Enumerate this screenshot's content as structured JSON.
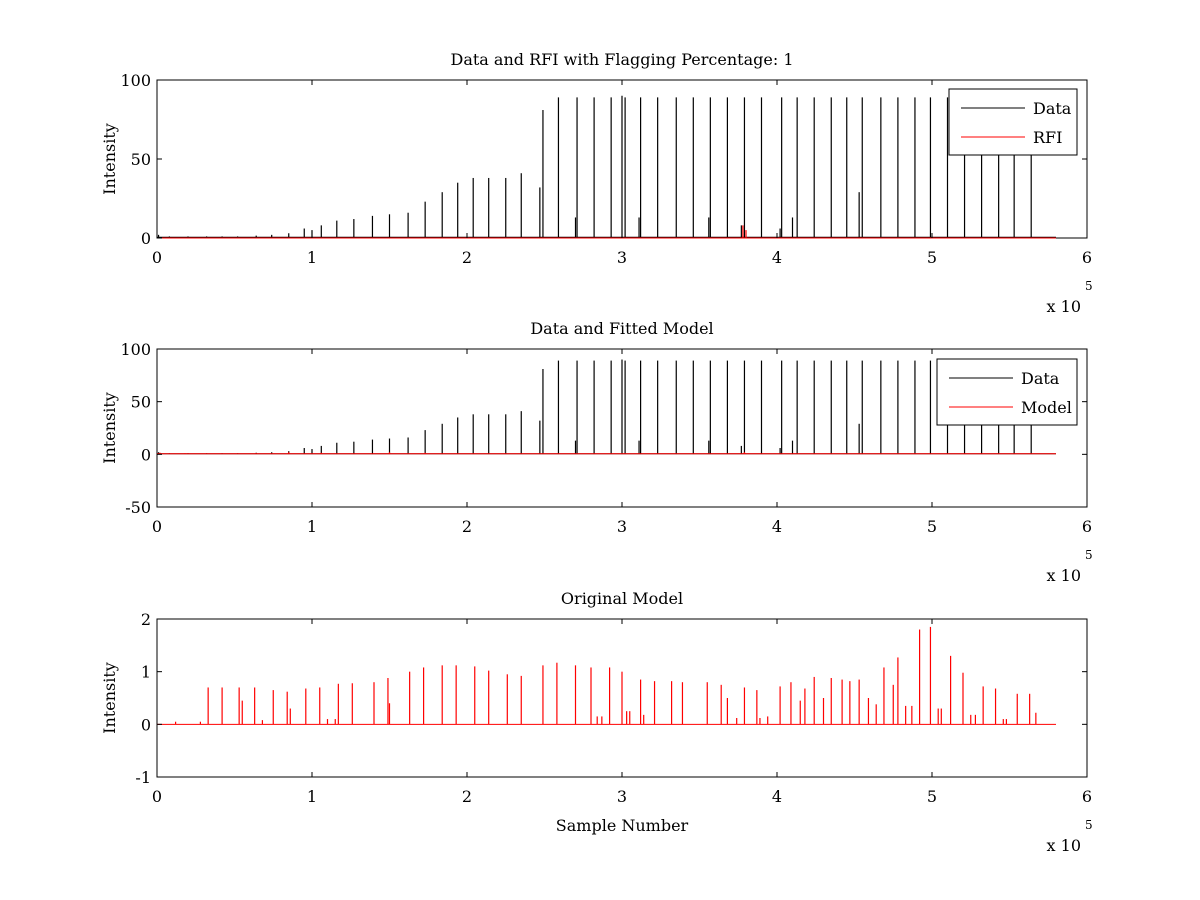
{
  "chart_data": [
    {
      "type": "line",
      "title": "Data and RFI with Flagging Percentage: 1",
      "xlabel": "",
      "ylabel": "Intensity",
      "xlim": [
        0,
        600000
      ],
      "ylim": [
        0,
        100
      ],
      "xticks": [
        0,
        100000,
        200000,
        300000,
        400000,
        500000,
        600000
      ],
      "xtick_labels": [
        "0",
        "1",
        "2",
        "3",
        "4",
        "5",
        "6"
      ],
      "yticks": [
        0,
        50,
        100
      ],
      "ytick_labels": [
        "0",
        "50",
        "100"
      ],
      "x_multiplier": {
        "base": "x 10",
        "exponent": "5"
      },
      "legend": {
        "position": "top-right",
        "entries": [
          "Data",
          "RFI"
        ]
      },
      "series": [
        {
          "name": "Data",
          "color": "#000000",
          "baseline": 0.5,
          "spikes": [
            [
              1000,
              2
            ],
            [
              8000,
              1
            ],
            [
              20000,
              1
            ],
            [
              32000,
              1
            ],
            [
              42000,
              1
            ],
            [
              52000,
              1
            ],
            [
              64000,
              1.5
            ],
            [
              74000,
              2
            ],
            [
              85000,
              3
            ],
            [
              95000,
              6
            ],
            [
              100000,
              5
            ],
            [
              106000,
              8
            ],
            [
              116000,
              11
            ],
            [
              127000,
              12
            ],
            [
              139000,
              14
            ],
            [
              150000,
              15
            ],
            [
              162000,
              16
            ],
            [
              173000,
              23
            ],
            [
              184000,
              29
            ],
            [
              194000,
              35
            ],
            [
              204000,
              38
            ],
            [
              214000,
              38
            ],
            [
              225000,
              38
            ],
            [
              235000,
              41
            ],
            [
              247000,
              32
            ],
            [
              249000,
              81
            ],
            [
              259000,
              89
            ],
            [
              270000,
              13
            ],
            [
              271000,
              89
            ],
            [
              282000,
              89
            ],
            [
              293000,
              89
            ],
            [
              300000,
              90
            ],
            [
              302000,
              89
            ],
            [
              311000,
              13
            ],
            [
              312000,
              89
            ],
            [
              323000,
              89
            ],
            [
              335000,
              89
            ],
            [
              346000,
              89
            ],
            [
              356000,
              13
            ],
            [
              357000,
              89
            ],
            [
              368000,
              89
            ],
            [
              377000,
              8
            ],
            [
              379000,
              89
            ],
            [
              390000,
              89
            ],
            [
              402000,
              6
            ],
            [
              403000,
              89
            ],
            [
              410000,
              13
            ],
            [
              413000,
              89
            ],
            [
              424000,
              89
            ],
            [
              435000,
              89
            ],
            [
              445000,
              89
            ],
            [
              453000,
              29
            ],
            [
              455000,
              89
            ],
            [
              467000,
              89
            ],
            [
              478000,
              89
            ],
            [
              489000,
              89
            ],
            [
              499000,
              89
            ],
            [
              510000,
              89
            ],
            [
              521000,
              89
            ],
            [
              532000,
              89
            ],
            [
              543000,
              89
            ],
            [
              553000,
              89
            ],
            [
              564000,
              89
            ]
          ],
          "x_end": 580000
        },
        {
          "name": "RFI",
          "color": "#ff0000",
          "baseline": 0,
          "spikes": [
            [
              378000,
              8
            ],
            [
              380000,
              5
            ]
          ],
          "x_end": 580000
        }
      ]
    },
    {
      "type": "line",
      "title": "Data and Fitted Model",
      "xlabel": "",
      "ylabel": "Intensity",
      "xlim": [
        0,
        600000
      ],
      "ylim": [
        -50,
        100
      ],
      "xticks": [
        0,
        100000,
        200000,
        300000,
        400000,
        500000,
        600000
      ],
      "xtick_labels": [
        "0",
        "1",
        "2",
        "3",
        "4",
        "5",
        "6"
      ],
      "yticks": [
        -50,
        0,
        50,
        100
      ],
      "ytick_labels": [
        "-50",
        "0",
        "50",
        "100"
      ],
      "x_multiplier": {
        "base": "x 10",
        "exponent": "5"
      },
      "legend": {
        "position": "top-right",
        "entries": [
          "Data",
          "Model"
        ]
      },
      "series": [
        {
          "name": "Data",
          "color": "#000000",
          "baseline": 0.5,
          "spikes": [
            [
              1000,
              2
            ],
            [
              8000,
              1
            ],
            [
              20000,
              1
            ],
            [
              32000,
              1
            ],
            [
              42000,
              1
            ],
            [
              52000,
              1
            ],
            [
              64000,
              1.5
            ],
            [
              74000,
              2
            ],
            [
              85000,
              3
            ],
            [
              95000,
              6
            ],
            [
              100000,
              5
            ],
            [
              106000,
              8
            ],
            [
              116000,
              11
            ],
            [
              127000,
              12
            ],
            [
              139000,
              14
            ],
            [
              150000,
              15
            ],
            [
              162000,
              16
            ],
            [
              173000,
              23
            ],
            [
              184000,
              29
            ],
            [
              194000,
              35
            ],
            [
              204000,
              38
            ],
            [
              214000,
              38
            ],
            [
              225000,
              38
            ],
            [
              235000,
              41
            ],
            [
              247000,
              32
            ],
            [
              249000,
              81
            ],
            [
              259000,
              89
            ],
            [
              270000,
              13
            ],
            [
              271000,
              89
            ],
            [
              282000,
              89
            ],
            [
              293000,
              89
            ],
            [
              300000,
              90
            ],
            [
              302000,
              89
            ],
            [
              311000,
              13
            ],
            [
              312000,
              89
            ],
            [
              323000,
              89
            ],
            [
              335000,
              89
            ],
            [
              346000,
              89
            ],
            [
              356000,
              13
            ],
            [
              357000,
              89
            ],
            [
              368000,
              89
            ],
            [
              377000,
              8
            ],
            [
              379000,
              89
            ],
            [
              390000,
              89
            ],
            [
              402000,
              6
            ],
            [
              403000,
              89
            ],
            [
              410000,
              13
            ],
            [
              413000,
              89
            ],
            [
              424000,
              89
            ],
            [
              435000,
              89
            ],
            [
              445000,
              89
            ],
            [
              453000,
              29
            ],
            [
              455000,
              89
            ],
            [
              467000,
              89
            ],
            [
              478000,
              89
            ],
            [
              489000,
              89
            ],
            [
              499000,
              89
            ],
            [
              510000,
              89
            ],
            [
              521000,
              89
            ],
            [
              532000,
              89
            ],
            [
              543000,
              89
            ],
            [
              553000,
              89
            ],
            [
              564000,
              89
            ]
          ],
          "x_end": 580000
        },
        {
          "name": "Model",
          "color": "#ff0000",
          "baseline": 0.5,
          "spikes": [
            [
              2000,
              1.5
            ],
            [
              18000,
              1
            ],
            [
              64000,
              1
            ],
            [
              85000,
              2
            ],
            [
              106000,
              1.5
            ],
            [
              150000,
              2
            ],
            [
              173000,
              1.5
            ],
            [
              379000,
              2
            ]
          ],
          "x_end": 580000
        }
      ]
    },
    {
      "type": "line",
      "title": "Original Model",
      "xlabel": "Sample Number",
      "ylabel": "Intensity",
      "xlim": [
        0,
        600000
      ],
      "ylim": [
        -1,
        2
      ],
      "xticks": [
        0,
        100000,
        200000,
        300000,
        400000,
        500000,
        600000
      ],
      "xtick_labels": [
        "0",
        "1",
        "2",
        "3",
        "4",
        "5",
        "6"
      ],
      "yticks": [
        -1,
        0,
        1,
        2
      ],
      "ytick_labels": [
        "-1",
        "0",
        "1",
        "2"
      ],
      "x_multiplier": {
        "base": "x 10",
        "exponent": "5"
      },
      "series": [
        {
          "color": "#ff0000",
          "baseline": 0,
          "spikes": [
            [
              12000,
              0.05
            ],
            [
              28000,
              0.05
            ],
            [
              33000,
              0.7
            ],
            [
              42000,
              0.7
            ],
            [
              53000,
              0.7
            ],
            [
              55000,
              0.45
            ],
            [
              63000,
              0.7
            ],
            [
              68000,
              0.08
            ],
            [
              75000,
              0.65
            ],
            [
              84000,
              0.62
            ],
            [
              86000,
              0.3
            ],
            [
              96000,
              0.68
            ],
            [
              105000,
              0.7
            ],
            [
              110000,
              0.1
            ],
            [
              115000,
              0.1
            ],
            [
              117000,
              0.77
            ],
            [
              126000,
              0.78
            ],
            [
              140000,
              0.8
            ],
            [
              149000,
              0.88
            ],
            [
              150000,
              0.4
            ],
            [
              163000,
              1.0
            ],
            [
              172000,
              1.08
            ],
            [
              184000,
              1.12
            ],
            [
              193000,
              1.12
            ],
            [
              205000,
              1.1
            ],
            [
              214000,
              1.02
            ],
            [
              226000,
              0.95
            ],
            [
              235000,
              0.92
            ],
            [
              249000,
              1.12
            ],
            [
              258000,
              1.17
            ],
            [
              270000,
              1.12
            ],
            [
              280000,
              1.08
            ],
            [
              284000,
              0.15
            ],
            [
              287000,
              0.15
            ],
            [
              292000,
              1.08
            ],
            [
              300000,
              1.0
            ],
            [
              303000,
              0.25
            ],
            [
              305000,
              0.25
            ],
            [
              312000,
              0.85
            ],
            [
              314000,
              0.18
            ],
            [
              321000,
              0.82
            ],
            [
              332000,
              0.82
            ],
            [
              339000,
              0.8
            ],
            [
              355000,
              0.8
            ],
            [
              364000,
              0.75
            ],
            [
              368000,
              0.5
            ],
            [
              374000,
              0.12
            ],
            [
              379000,
              0.7
            ],
            [
              387000,
              0.65
            ],
            [
              389000,
              0.12
            ],
            [
              394000,
              0.15
            ],
            [
              402000,
              0.72
            ],
            [
              409000,
              0.8
            ],
            [
              415000,
              0.45
            ],
            [
              418000,
              0.68
            ],
            [
              424000,
              0.9
            ],
            [
              430000,
              0.5
            ],
            [
              435000,
              0.88
            ],
            [
              442000,
              0.85
            ],
            [
              447000,
              0.82
            ],
            [
              453000,
              0.85
            ],
            [
              459000,
              0.5
            ],
            [
              464000,
              0.38
            ],
            [
              469000,
              1.08
            ],
            [
              475000,
              0.75
            ],
            [
              478000,
              1.27
            ],
            [
              483000,
              0.35
            ],
            [
              487000,
              0.35
            ],
            [
              492000,
              1.8
            ],
            [
              499000,
              1.85
            ],
            [
              504000,
              0.3
            ],
            [
              506000,
              0.3
            ],
            [
              512000,
              1.3
            ],
            [
              520000,
              0.98
            ],
            [
              525000,
              0.18
            ],
            [
              528000,
              0.18
            ],
            [
              533000,
              0.72
            ],
            [
              541000,
              0.68
            ],
            [
              546000,
              0.1
            ],
            [
              548000,
              0.1
            ],
            [
              555000,
              0.58
            ],
            [
              563000,
              0.58
            ],
            [
              567000,
              0.22
            ]
          ],
          "x_end": 580000
        }
      ]
    }
  ]
}
